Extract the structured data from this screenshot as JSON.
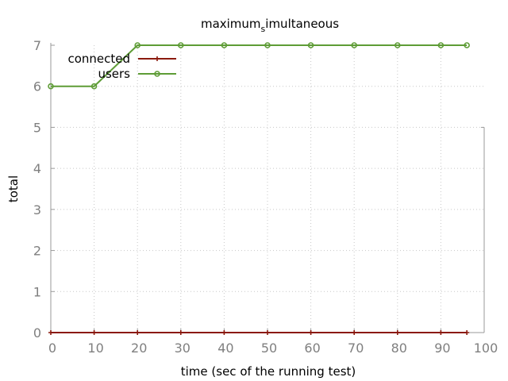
{
  "chart_data": {
    "type": "line",
    "title_main": "maximum",
    "title_sub": "s",
    "title_rest": "imultaneous",
    "xlabel": "time (sec of the running test)",
    "ylabel": "total",
    "xlim": [
      0,
      100
    ],
    "ylim": [
      0,
      7
    ],
    "x_ticks": [
      "0",
      "10",
      "20",
      "30",
      "40",
      "50",
      "60",
      "70",
      "80",
      "90",
      "100"
    ],
    "y_ticks": [
      "0",
      "1",
      "2",
      "3",
      "4",
      "5",
      "6",
      "7"
    ],
    "grid": true,
    "legend_position": "top-left",
    "series": [
      {
        "name": "connected",
        "color": "#8b1a0e",
        "marker": "plus",
        "x": [
          0,
          10,
          20,
          30,
          40,
          50,
          60,
          70,
          80,
          90,
          96
        ],
        "y": [
          0,
          0,
          0,
          0,
          0,
          0,
          0,
          0,
          0,
          0,
          0
        ]
      },
      {
        "name": "users",
        "color": "#5e9c36",
        "marker": "circle",
        "x": [
          0,
          10,
          20,
          30,
          40,
          50,
          60,
          70,
          80,
          90,
          96
        ],
        "y": [
          6,
          6,
          7,
          7,
          7,
          7,
          7,
          7,
          7,
          7,
          7
        ]
      }
    ]
  }
}
